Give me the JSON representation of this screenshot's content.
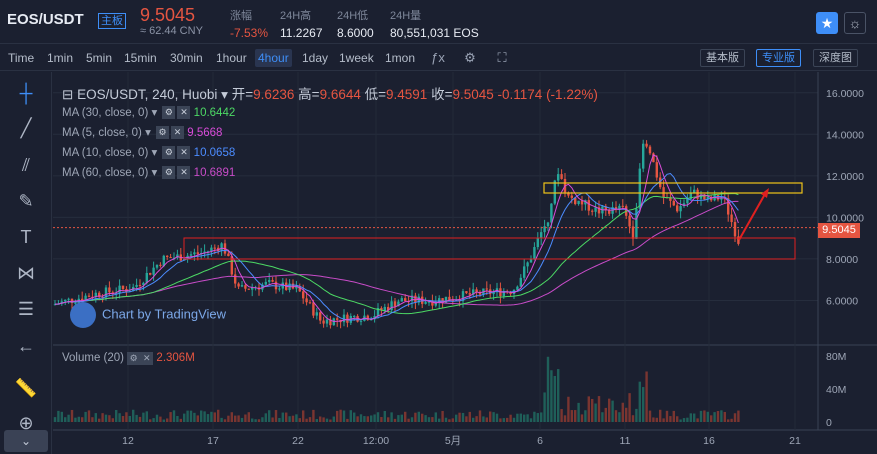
{
  "header": {
    "pair": "EOS/USDT",
    "badge": "主板",
    "price": "9.5045",
    "cny": "≈ 62.44 CNY",
    "stats": [
      {
        "label": "涨幅",
        "value": "-7.53%"
      },
      {
        "label": "24H高",
        "value": "11.2267"
      },
      {
        "label": "24H低",
        "value": "8.6000"
      },
      {
        "label": "24H量",
        "value": "80,551,031 EOS"
      }
    ]
  },
  "toolbar": {
    "timeframes": [
      "Time",
      "1min",
      "5min",
      "15min",
      "30min",
      "1hour",
      "4hour",
      "1day",
      "1week",
      "1mon"
    ],
    "active_timeframe": "4hour",
    "views": [
      "基本版",
      "专业版",
      "深度图"
    ],
    "active_view": "专业版"
  },
  "chart_info": {
    "symbol": "EOS/USDT, 240, Huobi",
    "open_label": "开=",
    "open": "9.6236",
    "high_label": "高=",
    "high": "9.6644",
    "low_label": "低=",
    "low": "9.4591",
    "close_label": "收=",
    "close": "9.5045",
    "change": "-0.1174 (-1.22%)"
  },
  "indicators": [
    {
      "label": "MA (30, close, 0)",
      "value": "10.6442",
      "color": "#4cd964"
    },
    {
      "label": "MA (5, close, 0)",
      "value": "9.5668",
      "color": "#d94cd9"
    },
    {
      "label": "MA (10, close, 0)",
      "value": "10.0658",
      "color": "#4c8cff"
    },
    {
      "label": "MA (60, close, 0)",
      "value": "10.6891",
      "color": "#c94cc9"
    }
  ],
  "watermark": "Chart by TradingView",
  "volume": {
    "label": "Volume (20)",
    "value": "2.306M"
  },
  "chart_data": {
    "type": "candlestick",
    "y_ticks": [
      "16.0000",
      "14.0000",
      "12.0000",
      "10.0000",
      "8.0000",
      "6.0000"
    ],
    "y_tick_values": [
      16,
      14,
      12,
      10,
      8,
      6
    ],
    "current_price": "9.5045",
    "x_ticks": [
      "12",
      "17",
      "22",
      "12:00",
      "5月",
      "6",
      "11",
      "16",
      "21"
    ],
    "volume_ticks": [
      "80M",
      "40M",
      "0"
    ],
    "volume_tick_values": [
      80,
      40,
      0
    ],
    "ylim": [
      4,
      17
    ]
  },
  "colors": {
    "up": "#26a69a",
    "down": "#e55541",
    "annotation_yellow": "#f0c419",
    "annotation_red": "#e02020"
  }
}
